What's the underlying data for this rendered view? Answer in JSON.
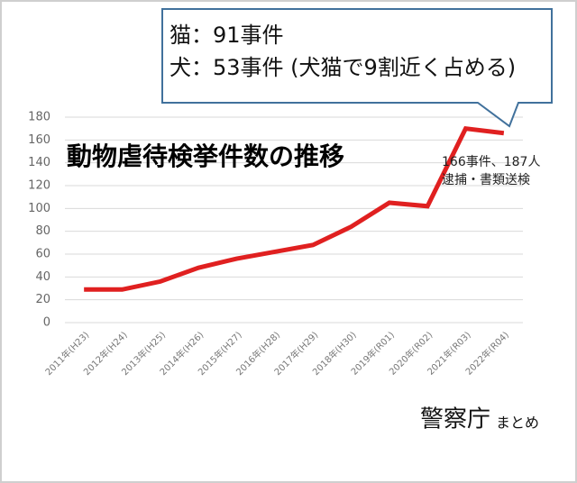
{
  "chart_data": {
    "type": "line",
    "title": "動物虐待検挙件数の推移",
    "callout": [
      "猫：91事件",
      "犬：53事件 (犬猫で9割近く占める)"
    ],
    "annotation": [
      "166事件、187人",
      "逮捕・書類送検"
    ],
    "source": "警察庁",
    "source_note": "まとめ",
    "categories": [
      "2011年(H23)",
      "2012年(H24)",
      "2013年(H25)",
      "2014年(H26)",
      "2015年(H27)",
      "2016年(H28)",
      "2017年(H29)",
      "2018年(H30)",
      "2019年(R01)",
      "2020年(R02)",
      "2021年(R03)",
      "2022年(R04)"
    ],
    "values": [
      29,
      29,
      36,
      48,
      56,
      62,
      68,
      84,
      105,
      102,
      170,
      166
    ],
    "color": "#e02020",
    "ylim": [
      0,
      180
    ],
    "yticks": [
      0,
      20,
      40,
      60,
      80,
      100,
      120,
      140,
      160,
      180
    ],
    "grid": true
  }
}
